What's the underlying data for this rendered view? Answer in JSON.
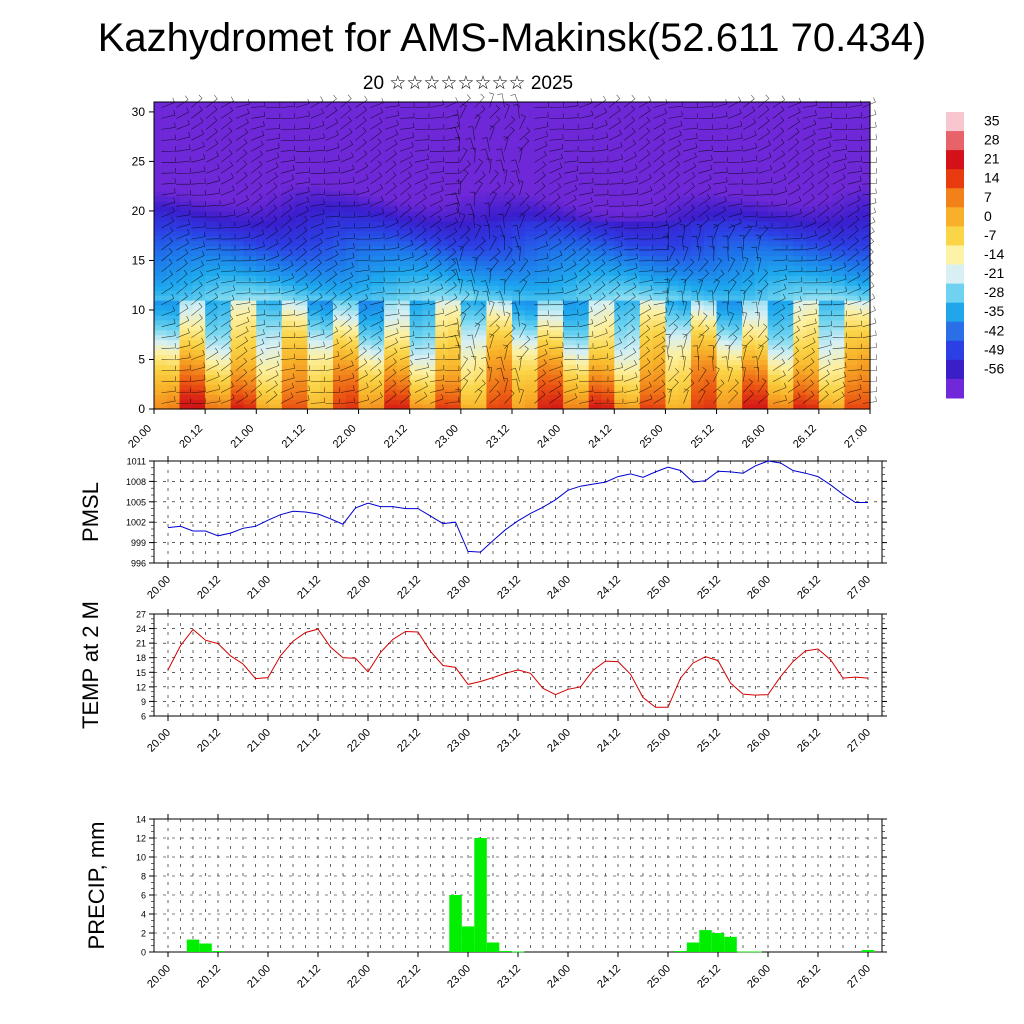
{
  "header": {
    "title": "Kazhydromet for AMS-Makinsk(52.611 70.434)",
    "subtitle": "20 ☆☆☆☆☆☆☆☆ 2025"
  },
  "time_labels": [
    "20.00",
    "20.12",
    "21.00",
    "21.12",
    "22.00",
    "22.12",
    "23.00",
    "23.12",
    "24.00",
    "24.12",
    "25.00",
    "25.12",
    "26.00",
    "26.12",
    "27.00"
  ],
  "colorbar": {
    "labels": [
      "35",
      "28",
      "21",
      "14",
      "7",
      "0",
      "-7",
      "-14",
      "-21",
      "-28",
      "-35",
      "-42",
      "-49",
      "-56"
    ],
    "colors": [
      "#f7c6cf",
      "#e8626a",
      "#d41018",
      "#e83c10",
      "#f2811a",
      "#f8b02b",
      "#fbd548",
      "#fdf3a6",
      "#d8f0f4",
      "#6fd2f0",
      "#22a6ea",
      "#2a6ee8",
      "#2c3fe4",
      "#3a1ec8",
      "#7028d8"
    ]
  },
  "chart_data": [
    {
      "type": "heatmap",
      "name": "upper-panel",
      "y_ticks": [
        0,
        5,
        10,
        15,
        20,
        25,
        30
      ],
      "ylim": [
        0,
        31
      ],
      "xlim": [
        0,
        14
      ],
      "color_scale": "temperature"
    },
    {
      "type": "line",
      "ylabel": "PMSL",
      "color": "#0000d0",
      "ylim": [
        996,
        1011
      ],
      "y_ticks": [
        996,
        999,
        1002,
        1005,
        1008,
        1011
      ],
      "x": [
        0,
        0.25,
        0.5,
        0.75,
        1,
        1.25,
        1.5,
        1.75,
        2,
        2.25,
        2.5,
        2.75,
        3,
        3.25,
        3.5,
        3.75,
        4,
        4.25,
        4.5,
        4.75,
        5,
        5.25,
        5.5,
        5.75,
        6,
        6.25,
        6.5,
        6.75,
        7,
        7.25,
        7.5,
        7.75,
        8,
        8.25,
        8.5,
        8.75,
        9,
        9.25,
        9.5,
        9.75,
        10,
        10.25,
        10.5,
        10.75,
        11,
        11.25,
        11.5,
        11.75,
        12,
        12.25,
        12.5,
        12.75,
        13,
        13.25,
        13.5,
        13.75,
        14
      ],
      "values": [
        1001.2,
        1001.4,
        1000.7,
        1000.7,
        1000.0,
        1000.4,
        1001.1,
        1001.4,
        1002.3,
        1003.1,
        1003.6,
        1003.5,
        1003.2,
        1002.5,
        1001.7,
        1004.1,
        1004.8,
        1004.3,
        1004.3,
        1004.0,
        1004.0,
        1002.9,
        1001.8,
        1002.0,
        997.7,
        997.6,
        999.3,
        1000.9,
        1002.2,
        1003.3,
        1004.2,
        1005.3,
        1006.7,
        1007.3,
        1007.6,
        1007.9,
        1008.7,
        1009.1,
        1008.6,
        1009.4,
        1010.1,
        1009.6,
        1007.9,
        1008.1,
        1009.5,
        1009.4,
        1009.2,
        1010.3,
        1011.0,
        1010.7,
        1009.6,
        1009.2,
        1008.7,
        1007.5,
        1006.1,
        1004.9,
        1004.9
      ]
    },
    {
      "type": "line",
      "ylabel": "TEMP at 2 M",
      "color": "#d40000",
      "ylim": [
        6,
        27
      ],
      "y_ticks": [
        6,
        9,
        12,
        15,
        18,
        21,
        24,
        27
      ],
      "x": [
        0,
        0.25,
        0.5,
        0.75,
        1,
        1.25,
        1.5,
        1.75,
        2,
        2.25,
        2.5,
        2.75,
        3,
        3.25,
        3.5,
        3.75,
        4,
        4.25,
        4.5,
        4.75,
        5,
        5.25,
        5.5,
        5.75,
        6,
        6.25,
        6.5,
        6.75,
        7,
        7.25,
        7.5,
        7.75,
        8,
        8.25,
        8.5,
        8.75,
        9,
        9.25,
        9.5,
        9.75,
        10,
        10.25,
        10.5,
        10.75,
        11,
        11.25,
        11.5,
        11.75,
        12,
        12.25,
        12.5,
        12.75,
        13,
        13.25,
        13.5,
        13.75,
        14
      ],
      "values": [
        15.5,
        20.5,
        23.8,
        21.6,
        20.9,
        18.4,
        16.7,
        13.7,
        13.9,
        18.4,
        21.4,
        23.2,
        23.9,
        20.2,
        18.0,
        17.9,
        15.1,
        19.1,
        21.8,
        23.4,
        23.3,
        19.3,
        16.4,
        16.0,
        12.5,
        13.1,
        13.9,
        14.8,
        15.5,
        14.8,
        11.7,
        10.4,
        11.5,
        12.0,
        15.4,
        17.3,
        17.2,
        14.6,
        9.8,
        7.8,
        7.8,
        13.8,
        16.9,
        18.2,
        17.4,
        12.8,
        10.5,
        10.3,
        10.4,
        14.1,
        17.2,
        19.4,
        19.8,
        17.6,
        13.8,
        14.0,
        13.8
      ]
    },
    {
      "type": "bar",
      "ylabel": "PRECIP, mm",
      "color": "#00ee00",
      "ylim": [
        0,
        14
      ],
      "y_ticks": [
        0,
        2,
        4,
        6,
        8,
        10,
        12,
        14
      ],
      "bar_width": 0.25,
      "x": [
        0.5,
        0.75,
        1.0,
        5.75,
        6.0,
        6.25,
        6.5,
        6.75,
        7.0,
        10.25,
        10.5,
        10.75,
        11.0,
        11.25,
        11.5,
        11.75,
        14.0
      ],
      "values": [
        1.3,
        0.9,
        0.1,
        6.0,
        2.7,
        12.0,
        1.0,
        0.1,
        0.05,
        0.1,
        1.0,
        2.3,
        2.0,
        1.6,
        0.05,
        0.05,
        0.2
      ]
    }
  ]
}
